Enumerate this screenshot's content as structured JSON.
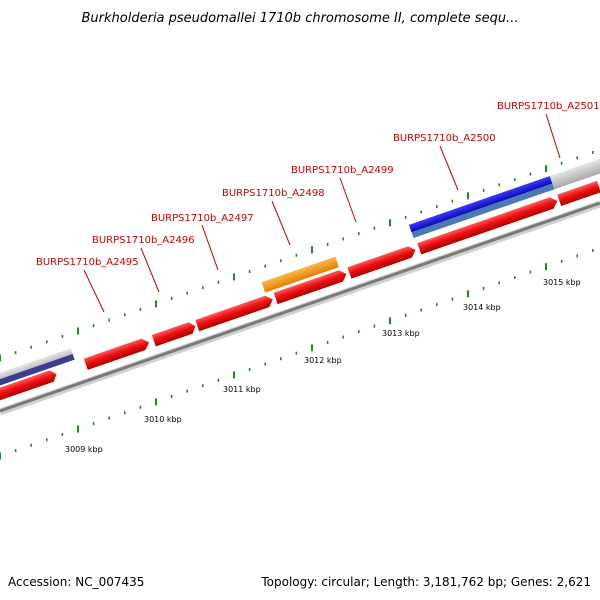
{
  "title": "Burkholderia pseudomallei 1710b chromosome II, complete sequ...",
  "footer": {
    "accession": "Accession: NC_007435",
    "summary": "Topology: circular; Length: 3,181,762 bp; Genes: 2,621"
  },
  "gene_labels": [
    "BURPS1710b_A2495",
    "BURPS1710b_A2496",
    "BURPS1710b_A2497",
    "BURPS1710b_A2498",
    "BURPS1710b_A2499",
    "BURPS1710b_A2500",
    "BURPS1710b_A2501"
  ],
  "kbp_labels": [
    "3009 kbp",
    "3010 kbp",
    "3011 kbp",
    "3012 kbp",
    "3013 kbp",
    "3014 kbp",
    "3015 kbp"
  ],
  "colors": {
    "gene_label": "#cc0000",
    "tick": "#228b22",
    "backbone": "#808080",
    "forward_gene": "#ee1111",
    "orange_feature": "#ff9900",
    "blue_feature": "#1a1adf",
    "steelblue_feature": "#4a7ab5",
    "grey_feature": "#c0c0c0",
    "navy_feature": "#3d3d8f"
  }
}
